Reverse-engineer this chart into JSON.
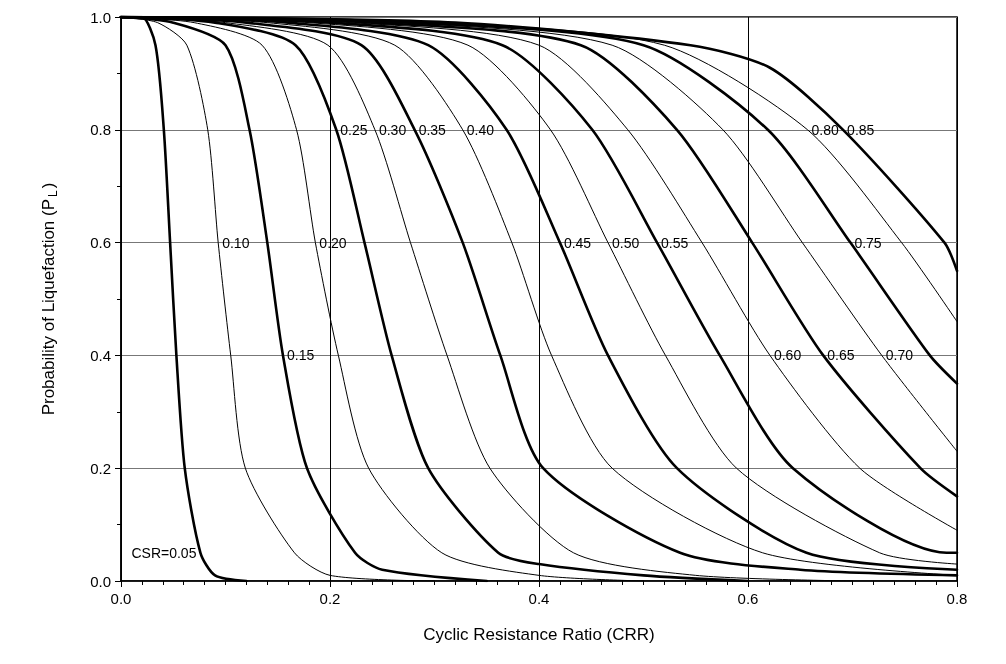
{
  "chart_data": {
    "type": "line",
    "xlabel": "Cyclic Resistance Ratio (CRR)",
    "ylabel": "Probability of Liquefaction (P$_{L}$)",
    "xlim": [
      0,
      0.8
    ],
    "ylim": [
      0,
      1
    ],
    "xticks": [
      {
        "value": 0,
        "label": "0.0"
      },
      {
        "value": 0.2,
        "label": "0.2"
      },
      {
        "value": 0.4,
        "label": "0.4"
      },
      {
        "value": 0.6,
        "label": "0.6"
      },
      {
        "value": 0.8,
        "label": "0.8"
      }
    ],
    "yticks": [
      {
        "value": 0,
        "label": "0.0"
      },
      {
        "value": 0.2,
        "label": "0.2"
      },
      {
        "value": 0.4,
        "label": "0.4"
      },
      {
        "value": 0.6,
        "label": "0.6"
      },
      {
        "value": 0.8,
        "label": "0.8"
      },
      {
        "value": 1,
        "label": "1.0"
      }
    ],
    "grid": true,
    "marker": "none",
    "line_style": "solid",
    "series": [
      {
        "name": "CSR=0.05",
        "color": "#000000",
        "x": [
          0,
          0.02,
          0.033,
          0.041,
          0.047,
          0.053,
          0.061,
          0.076,
          0.09,
          0.12
        ],
        "values": [
          1,
          1,
          0.95,
          0.8,
          0.6,
          0.4,
          0.2,
          0.05,
          0.01,
          0
        ]
      },
      {
        "name": "0.10",
        "color": "#000000",
        "x": [
          0,
          0.035,
          0.063,
          0.083,
          0.093,
          0.105,
          0.119,
          0.166,
          0.2,
          0.3
        ],
        "values": [
          1,
          0.99,
          0.95,
          0.8,
          0.6,
          0.4,
          0.2,
          0.05,
          0.01,
          0
        ]
      },
      {
        "name": "0.15",
        "color": "#000000",
        "x": [
          0,
          0.05,
          0.1,
          0.123,
          0.14,
          0.155,
          0.178,
          0.224,
          0.25,
          0.35
        ],
        "values": [
          1,
          0.99,
          0.95,
          0.8,
          0.6,
          0.4,
          0.2,
          0.05,
          0.02,
          0
        ]
      },
      {
        "name": "0.20",
        "color": "#000000",
        "x": [
          0,
          0.07,
          0.135,
          0.168,
          0.186,
          0.208,
          0.237,
          0.307,
          0.4,
          0.5
        ],
        "values": [
          1,
          0.99,
          0.95,
          0.8,
          0.6,
          0.4,
          0.2,
          0.05,
          0.01,
          0
        ]
      },
      {
        "name": "0.25",
        "color": "#000000",
        "x": [
          0,
          0.09,
          0.167,
          0.206,
          0.233,
          0.259,
          0.294,
          0.361,
          0.4,
          0.5,
          0.6
        ],
        "values": [
          1,
          0.99,
          0.95,
          0.8,
          0.6,
          0.4,
          0.2,
          0.05,
          0.03,
          0.01,
          0
        ]
      },
      {
        "name": "0.30",
        "color": "#000000",
        "x": [
          0,
          0.1,
          0.198,
          0.243,
          0.277,
          0.312,
          0.353,
          0.433,
          0.55,
          0.7
        ],
        "values": [
          1,
          0.99,
          0.95,
          0.8,
          0.6,
          0.4,
          0.2,
          0.05,
          0.01,
          0
        ]
      },
      {
        "name": "0.35",
        "color": "#000000",
        "x": [
          0,
          0.12,
          0.23,
          0.281,
          0.327,
          0.363,
          0.404,
          0.535,
          0.65,
          0.8
        ],
        "values": [
          1,
          0.99,
          0.95,
          0.8,
          0.6,
          0.4,
          0.2,
          0.05,
          0.02,
          0.01
        ]
      },
      {
        "name": "0.40",
        "color": "#000000",
        "x": [
          0,
          0.14,
          0.262,
          0.327,
          0.374,
          0.412,
          0.47,
          0.614,
          0.8
        ],
        "values": [
          1,
          0.99,
          0.95,
          0.8,
          0.6,
          0.4,
          0.2,
          0.05,
          0.01
        ]
      },
      {
        "name": "0.45",
        "color": "#000000",
        "x": [
          0,
          0.16,
          0.294,
          0.369,
          0.42,
          0.466,
          0.532,
          0.656,
          0.8
        ],
        "values": [
          1,
          0.99,
          0.95,
          0.8,
          0.6,
          0.4,
          0.2,
          0.05,
          0.02
        ]
      },
      {
        "name": "0.50",
        "color": "#000000",
        "x": [
          0,
          0.18,
          0.332,
          0.411,
          0.466,
          0.521,
          0.589,
          0.726,
          0.8
        ],
        "values": [
          1,
          0.99,
          0.95,
          0.8,
          0.6,
          0.4,
          0.2,
          0.05,
          0.03
        ]
      },
      {
        "name": "0.55",
        "color": "#000000",
        "x": [
          0,
          0.2,
          0.365,
          0.451,
          0.513,
          0.573,
          0.643,
          0.79,
          0.8
        ],
        "values": [
          1,
          0.99,
          0.95,
          0.8,
          0.6,
          0.4,
          0.2,
          0.05,
          0.05
        ]
      },
      {
        "name": "0.60",
        "color": "#000000",
        "x": [
          0,
          0.22,
          0.4,
          0.485,
          0.556,
          0.621,
          0.707,
          0.8
        ],
        "values": [
          1,
          0.99,
          0.95,
          0.8,
          0.6,
          0.4,
          0.2,
          0.09
        ]
      },
      {
        "name": "0.65",
        "color": "#000000",
        "x": [
          0,
          0.24,
          0.44,
          0.532,
          0.604,
          0.672,
          0.765,
          0.8
        ],
        "values": [
          1,
          0.99,
          0.95,
          0.8,
          0.6,
          0.4,
          0.2,
          0.15
        ]
      },
      {
        "name": "0.70",
        "color": "#000000",
        "x": [
          0,
          0.26,
          0.47,
          0.576,
          0.652,
          0.728,
          0.8
        ],
        "values": [
          1,
          0.99,
          0.95,
          0.8,
          0.6,
          0.4,
          0.23
        ]
      },
      {
        "name": "0.75",
        "color": "#000000",
        "x": [
          0,
          0.28,
          0.5,
          0.619,
          0.698,
          0.774,
          0.8
        ],
        "values": [
          1,
          0.99,
          0.95,
          0.8,
          0.6,
          0.4,
          0.35
        ]
      },
      {
        "name": "0.80",
        "color": "#000000",
        "x": [
          0,
          0.3,
          0.52,
          0.657,
          0.747,
          0.8
        ],
        "values": [
          1,
          0.99,
          0.95,
          0.8,
          0.6,
          0.46
        ]
      },
      {
        "name": "0.85",
        "color": "#000000",
        "x": [
          0,
          0.32,
          0.545,
          0.621,
          0.691,
          0.788,
          0.8
        ],
        "values": [
          1,
          0.99,
          0.95,
          0.91,
          0.8,
          0.6,
          0.55
        ]
      }
    ]
  }
}
